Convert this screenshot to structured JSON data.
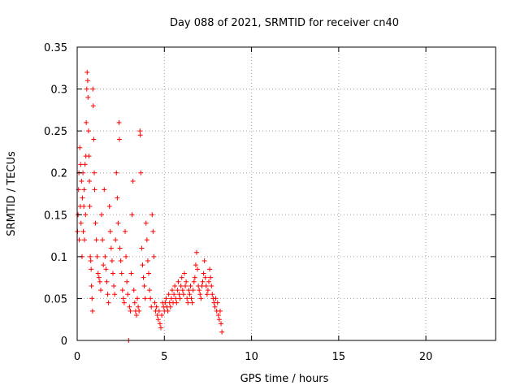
{
  "chart_data": {
    "type": "scatter",
    "title": "Day 088 of 2021, SRMTID for receiver cn40",
    "xlabel": "GPS time / hours",
    "ylabel": "SRMTID / TECUs",
    "xlim": [
      0,
      24
    ],
    "ylim": [
      0,
      0.35
    ],
    "grid": true,
    "marker": "+",
    "color": "#ff0000",
    "xticks": [
      0,
      5,
      10,
      15,
      20
    ],
    "xtick_labels": [
      "0",
      "5",
      "10",
      "15",
      "20"
    ],
    "yticks": [
      0,
      0.05,
      0.1,
      0.15,
      0.2,
      0.25,
      0.3,
      0.35
    ],
    "ytick_labels": [
      "0",
      "0.05",
      "0.1",
      "0.15",
      "0.2",
      "0.25",
      "0.3",
      "0.35"
    ],
    "series": [
      {
        "name": "SRMTID",
        "points": [
          [
            0.02,
            0.13
          ],
          [
            0.05,
            0.15
          ],
          [
            0.08,
            0.18
          ],
          [
            0.1,
            0.2
          ],
          [
            0.12,
            0.12
          ],
          [
            0.15,
            0.23
          ],
          [
            0.18,
            0.16
          ],
          [
            0.2,
            0.21
          ],
          [
            0.22,
            0.14
          ],
          [
            0.25,
            0.19
          ],
          [
            0.28,
            0.1
          ],
          [
            0.3,
            0.17
          ],
          [
            0.33,
            0.2
          ],
          [
            0.35,
            0.13
          ],
          [
            0.38,
            0.16
          ],
          [
            0.4,
            0.18
          ],
          [
            0.42,
            0.12
          ],
          [
            0.45,
            0.21
          ],
          [
            0.48,
            0.15
          ],
          [
            0.5,
            0.22
          ],
          [
            0.52,
            0.26
          ],
          [
            0.55,
            0.3
          ],
          [
            0.57,
            0.32
          ],
          [
            0.6,
            0.31
          ],
          [
            0.62,
            0.29
          ],
          [
            0.65,
            0.25
          ],
          [
            0.68,
            0.22
          ],
          [
            0.7,
            0.19
          ],
          [
            0.72,
            0.16
          ],
          [
            0.75,
            0.1
          ],
          [
            0.78,
            0.095
          ],
          [
            0.8,
            0.085
          ],
          [
            0.82,
            0.065
          ],
          [
            0.85,
            0.05
          ],
          [
            0.88,
            0.035
          ],
          [
            0.9,
            0.3
          ],
          [
            0.92,
            0.28
          ],
          [
            0.95,
            0.24
          ],
          [
            0.98,
            0.2
          ],
          [
            1.0,
            0.18
          ],
          [
            1.05,
            0.14
          ],
          [
            1.1,
            0.12
          ],
          [
            1.15,
            0.1
          ],
          [
            1.2,
            0.08
          ],
          [
            1.25,
            0.075
          ],
          [
            1.3,
            0.07
          ],
          [
            1.35,
            0.06
          ],
          [
            1.4,
            0.15
          ],
          [
            1.45,
            0.12
          ],
          [
            1.5,
            0.09
          ],
          [
            1.55,
            0.18
          ],
          [
            1.6,
            0.1
          ],
          [
            1.65,
            0.085
          ],
          [
            1.7,
            0.07
          ],
          [
            1.75,
            0.055
          ],
          [
            1.8,
            0.045
          ],
          [
            1.85,
            0.16
          ],
          [
            1.9,
            0.13
          ],
          [
            1.95,
            0.11
          ],
          [
            2.0,
            0.095
          ],
          [
            2.05,
            0.08
          ],
          [
            2.1,
            0.065
          ],
          [
            2.15,
            0.055
          ],
          [
            2.2,
            0.12
          ],
          [
            2.25,
            0.2
          ],
          [
            2.3,
            0.17
          ],
          [
            2.35,
            0.14
          ],
          [
            2.4,
            0.26
          ],
          [
            2.42,
            0.24
          ],
          [
            2.45,
            0.11
          ],
          [
            2.5,
            0.095
          ],
          [
            2.55,
            0.08
          ],
          [
            2.6,
            0.06
          ],
          [
            2.65,
            0.05
          ],
          [
            2.7,
            0.045
          ],
          [
            2.75,
            0.13
          ],
          [
            2.8,
            0.1
          ],
          [
            2.85,
            0.07
          ],
          [
            2.9,
            0.055
          ],
          [
            2.95,
            0.0
          ],
          [
            3.0,
            0.04
          ],
          [
            3.05,
            0.035
          ],
          [
            3.1,
            0.08
          ],
          [
            3.15,
            0.15
          ],
          [
            3.2,
            0.19
          ],
          [
            3.25,
            0.06
          ],
          [
            3.3,
            0.045
          ],
          [
            3.35,
            0.035
          ],
          [
            3.4,
            0.03
          ],
          [
            3.45,
            0.05
          ],
          [
            3.5,
            0.04
          ],
          [
            3.55,
            0.035
          ],
          [
            3.6,
            0.25
          ],
          [
            3.62,
            0.245
          ],
          [
            3.65,
            0.2
          ],
          [
            3.7,
            0.11
          ],
          [
            3.75,
            0.09
          ],
          [
            3.8,
            0.075
          ],
          [
            3.85,
            0.065
          ],
          [
            3.9,
            0.05
          ],
          [
            3.95,
            0.14
          ],
          [
            4.0,
            0.12
          ],
          [
            4.05,
            0.095
          ],
          [
            4.1,
            0.08
          ],
          [
            4.15,
            0.06
          ],
          [
            4.2,
            0.05
          ],
          [
            4.25,
            0.04
          ],
          [
            4.3,
            0.15
          ],
          [
            4.35,
            0.13
          ],
          [
            4.4,
            0.1
          ],
          [
            4.45,
            0.045
          ],
          [
            4.5,
            0.035
          ],
          [
            4.55,
            0.04
          ],
          [
            4.6,
            0.03
          ],
          [
            4.65,
            0.025
          ],
          [
            4.7,
            0.035
          ],
          [
            4.75,
            0.02
          ],
          [
            4.8,
            0.015
          ],
          [
            4.85,
            0.03
          ],
          [
            4.9,
            0.045
          ],
          [
            4.95,
            0.04
          ],
          [
            5.0,
            0.035
          ],
          [
            5.05,
            0.045
          ],
          [
            5.1,
            0.05
          ],
          [
            5.15,
            0.04
          ],
          [
            5.2,
            0.035
          ],
          [
            5.25,
            0.055
          ],
          [
            5.3,
            0.045
          ],
          [
            5.35,
            0.04
          ],
          [
            5.4,
            0.05
          ],
          [
            5.45,
            0.06
          ],
          [
            5.5,
            0.045
          ],
          [
            5.55,
            0.055
          ],
          [
            5.6,
            0.065
          ],
          [
            5.65,
            0.05
          ],
          [
            5.7,
            0.045
          ],
          [
            5.75,
            0.06
          ],
          [
            5.8,
            0.07
          ],
          [
            5.85,
            0.055
          ],
          [
            5.9,
            0.05
          ],
          [
            5.95,
            0.065
          ],
          [
            6.0,
            0.075
          ],
          [
            6.05,
            0.06
          ],
          [
            6.1,
            0.055
          ],
          [
            6.15,
            0.08
          ],
          [
            6.2,
            0.065
          ],
          [
            6.25,
            0.07
          ],
          [
            6.3,
            0.05
          ],
          [
            6.35,
            0.045
          ],
          [
            6.4,
            0.06
          ],
          [
            6.45,
            0.055
          ],
          [
            6.5,
            0.065
          ],
          [
            6.55,
            0.05
          ],
          [
            6.6,
            0.045
          ],
          [
            6.65,
            0.06
          ],
          [
            6.7,
            0.07
          ],
          [
            6.75,
            0.075
          ],
          [
            6.8,
            0.09
          ],
          [
            6.85,
            0.105
          ],
          [
            6.9,
            0.085
          ],
          [
            6.95,
            0.065
          ],
          [
            7.0,
            0.06
          ],
          [
            7.05,
            0.055
          ],
          [
            7.1,
            0.05
          ],
          [
            7.15,
            0.065
          ],
          [
            7.2,
            0.07
          ],
          [
            7.25,
            0.08
          ],
          [
            7.3,
            0.095
          ],
          [
            7.35,
            0.075
          ],
          [
            7.4,
            0.065
          ],
          [
            7.45,
            0.055
          ],
          [
            7.5,
            0.06
          ],
          [
            7.55,
            0.07
          ],
          [
            7.6,
            0.085
          ],
          [
            7.65,
            0.075
          ],
          [
            7.7,
            0.065
          ],
          [
            7.75,
            0.055
          ],
          [
            7.8,
            0.05
          ],
          [
            7.85,
            0.045
          ],
          [
            7.9,
            0.04
          ],
          [
            7.95,
            0.05
          ],
          [
            8.0,
            0.035
          ],
          [
            8.05,
            0.045
          ],
          [
            8.1,
            0.03
          ],
          [
            8.15,
            0.025
          ],
          [
            8.2,
            0.035
          ],
          [
            8.25,
            0.02
          ],
          [
            8.3,
            0.01
          ]
        ]
      }
    ]
  }
}
